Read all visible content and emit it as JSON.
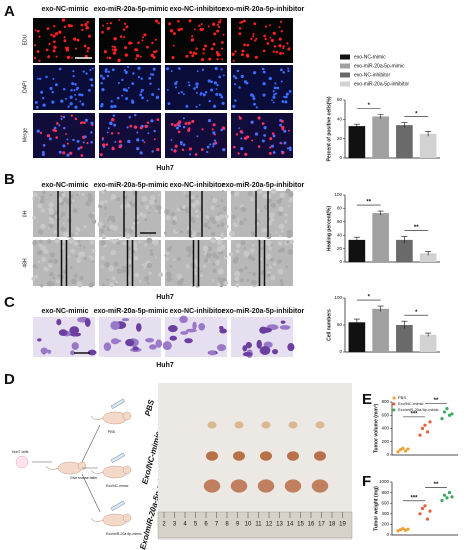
{
  "figure": {
    "panels": [
      "A",
      "B",
      "C",
      "D",
      "E",
      "F"
    ],
    "A": {
      "columns": [
        "exo-NC-mimic",
        "exo-miR-20a-5p-mimic",
        "exo-NC-inhibitor",
        "exo-miR-20a-5p-inhibitor"
      ],
      "rows": [
        "EDU",
        "DAPI",
        "Merge"
      ],
      "cell_line": "Huh7"
    },
    "B": {
      "columns": [
        "exo-NC-mimic",
        "exo-miR-20a-5p-mimic",
        "exo-NC-inhibitor",
        "exo-miR-20a-5p-inhibitor"
      ],
      "rows": [
        "0H",
        "48H"
      ],
      "cell_line": "Huh7"
    },
    "C": {
      "columns": [
        "exo-NC-mimic",
        "exo-miR-20a-5p-mimic",
        "exo-NC-inhibitor",
        "exo-miR-20a-5p-inhibitor"
      ],
      "cell_line": "Huh7"
    },
    "D": {
      "schematic": [
        "Huh7 cells",
        "Give mouse tailer",
        "PBS",
        "Exo/NC-mimic",
        "Exo/miR-20a-5p-mimic"
      ],
      "groups": [
        "PBS",
        "Exo/NC-mimic",
        "Exo/miR-20a-5p-mimic"
      ],
      "ruler": [
        2,
        3,
        4,
        5,
        6,
        7,
        8,
        9,
        10,
        11,
        12,
        13,
        14,
        15,
        16,
        17,
        18,
        19
      ]
    }
  },
  "chart_data": [
    {
      "type": "bar",
      "ylabel": "Percent of positive cells(%)",
      "categories": [
        "exo-NC-mimic",
        "exo-miR-20a-5p-mimic",
        "exo-NC-inhibitor",
        "exo-miR-20a-5p-inhibitor"
      ],
      "colors": [
        "#111111",
        "#a0a0a0",
        "#6a6a6a",
        "#d2d2d2"
      ],
      "values": [
        33,
        43,
        34,
        25
      ],
      "errors": [
        2,
        2,
        2.5,
        2.5
      ],
      "ylim": [
        0,
        60
      ],
      "yticks": [
        0,
        20,
        40,
        60
      ],
      "legend": "top",
      "annotations": [
        {
          "label": "*",
          "between": [
            0,
            1
          ]
        },
        {
          "label": "*",
          "between": [
            2,
            3
          ]
        }
      ]
    },
    {
      "type": "bar",
      "ylabel": "Healing percent(%)",
      "colors": [
        "#111111",
        "#a0a0a0",
        "#6a6a6a",
        "#d2d2d2"
      ],
      "values": [
        33,
        73,
        33,
        13
      ],
      "errors": [
        4,
        3,
        5,
        3
      ],
      "ylim": [
        0,
        100
      ],
      "yticks": [
        0,
        20,
        40,
        60,
        80,
        100
      ],
      "annotations": [
        {
          "label": "**",
          "between": [
            0,
            1
          ]
        },
        {
          "label": "**",
          "between": [
            2,
            3
          ]
        }
      ]
    },
    {
      "type": "bar",
      "ylabel": "Cell numbers",
      "colors": [
        "#111111",
        "#a0a0a0",
        "#6a6a6a",
        "#d2d2d2"
      ],
      "values": [
        55,
        80,
        50,
        32
      ],
      "errors": [
        6,
        5,
        7,
        3
      ],
      "ylim": [
        0,
        100
      ],
      "yticks": [
        0,
        50,
        100
      ],
      "annotations": [
        {
          "label": "*",
          "between": [
            0,
            1
          ]
        },
        {
          "label": "*",
          "between": [
            2,
            3
          ]
        }
      ]
    },
    {
      "type": "scatter",
      "ylabel": "Tumor volume (mm³)",
      "series": [
        {
          "name": "PBS",
          "color": "#f0a030",
          "values": [
            50,
            80,
            100,
            60,
            90
          ]
        },
        {
          "name": "Exo/NC-mimic",
          "color": "#e8603a",
          "values": [
            300,
            400,
            450,
            350,
            500
          ]
        },
        {
          "name": "Exo/miR-20a-5p-mimic",
          "color": "#3aa860",
          "values": [
            550,
            650,
            700,
            600,
            620
          ]
        }
      ],
      "ylim": [
        0,
        800
      ],
      "yticks": [
        0,
        200,
        400,
        600,
        800
      ],
      "legend": "upper-left",
      "annotations": [
        {
          "label": "***",
          "between": [
            0,
            1
          ]
        },
        {
          "label": "**",
          "between": [
            1,
            2
          ]
        }
      ]
    },
    {
      "type": "scatter",
      "ylabel": "Tumor weight (mg)",
      "series": [
        {
          "color": "#f0a030",
          "values": [
            80,
            100,
            120,
            90,
            110
          ]
        },
        {
          "color": "#e8603a",
          "values": [
            400,
            500,
            550,
            300,
            450
          ]
        },
        {
          "color": "#3aa860",
          "values": [
            650,
            750,
            700,
            800,
            720
          ]
        }
      ],
      "ylim": [
        0,
        1000
      ],
      "yticks": [
        0,
        200,
        400,
        600,
        800,
        1000
      ],
      "annotations": [
        {
          "label": "***",
          "between": [
            0,
            1
          ]
        },
        {
          "label": "**",
          "between": [
            1,
            2
          ]
        }
      ]
    }
  ]
}
